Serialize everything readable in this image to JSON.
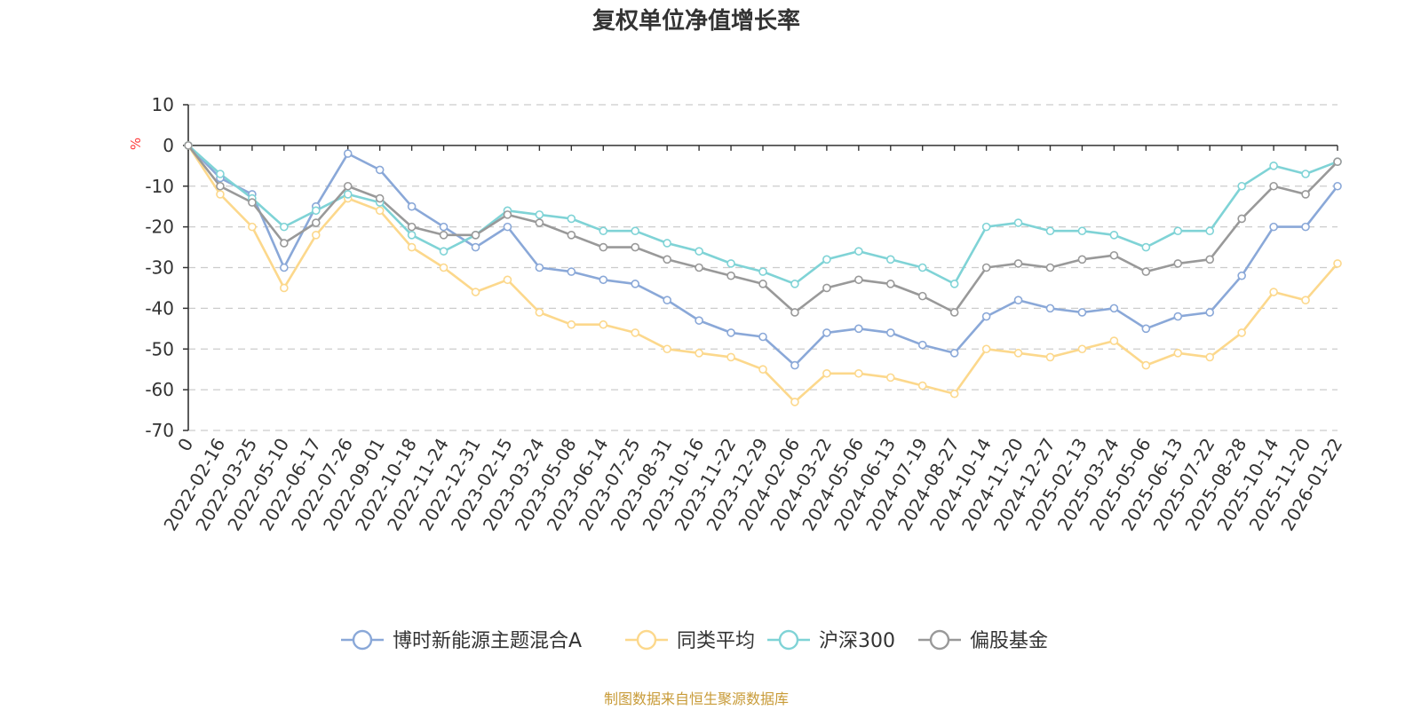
{
  "chart_data": {
    "type": "line",
    "title": "复权单位净值增长率",
    "ylabel": "%",
    "ylim": [
      -70,
      10
    ],
    "y_ticks": [
      10,
      0,
      -10,
      -20,
      -30,
      -40,
      -50,
      -60,
      -70
    ],
    "grid": true,
    "legend_position": "bottom",
    "x": [
      "0",
      "2022-02-16",
      "2022-03-25",
      "2022-05-10",
      "2022-06-17",
      "2022-07-26",
      "2022-09-01",
      "2022-10-18",
      "2022-11-24",
      "2022-12-31",
      "2023-02-15",
      "2023-03-24",
      "2023-05-08",
      "2023-06-14",
      "2023-07-25",
      "2023-08-31",
      "2023-10-16",
      "2023-11-22",
      "2023-12-29",
      "2024-02-06",
      "2024-03-22",
      "2024-05-06",
      "2024-06-13",
      "2024-07-19",
      "2024-08-27",
      "2024-10-14",
      "2024-11-20",
      "2024-12-27",
      "2025-02-13",
      "2025-03-24",
      "2025-05-06",
      "2025-06-13",
      "2025-07-22",
      "2025-08-28",
      "2025-10-14",
      "2025-11-20",
      "2026-01-22"
    ],
    "series": [
      {
        "name": "博时新能源主题混合A",
        "color": "#8aa8d8",
        "values": [
          0,
          -8,
          -12,
          -30,
          -15,
          -2,
          -6,
          -15,
          -20,
          -25,
          -20,
          -30,
          -31,
          -33,
          -34,
          -38,
          -43,
          -46,
          -47,
          -54,
          -46,
          -45,
          -46,
          -49,
          -51,
          -42,
          -38,
          -40,
          -41,
          -40,
          -45,
          -42,
          -41,
          -32,
          -20,
          -20,
          -10
        ]
      },
      {
        "name": "同类平均",
        "color": "#fcd88c",
        "values": [
          0,
          -12,
          -20,
          -35,
          -22,
          -13,
          -16,
          -25,
          -30,
          -36,
          -33,
          -41,
          -44,
          -44,
          -46,
          -50,
          -51,
          -52,
          -55,
          -63,
          -56,
          -56,
          -57,
          -59,
          -61,
          -50,
          -51,
          -52,
          -50,
          -48,
          -54,
          -51,
          -52,
          -46,
          -36,
          -38,
          -29
        ]
      },
      {
        "name": "沪深300",
        "color": "#7fd3d6",
        "values": [
          0,
          -7,
          -13,
          -20,
          -16,
          -12,
          -14,
          -22,
          -26,
          -22,
          -16,
          -17,
          -18,
          -21,
          -21,
          -24,
          -26,
          -29,
          -31,
          -34,
          -28,
          -26,
          -28,
          -30,
          -34,
          -20,
          -19,
          -21,
          -21,
          -22,
          -25,
          -21,
          -21,
          -10,
          -5,
          -7,
          -4
        ]
      },
      {
        "name": "偏股基金",
        "color": "#999999",
        "values": [
          0,
          -10,
          -14,
          -24,
          -19,
          -10,
          -13,
          -20,
          -22,
          -22,
          -17,
          -19,
          -22,
          -25,
          -25,
          -28,
          -30,
          -32,
          -34,
          -41,
          -35,
          -33,
          -34,
          -37,
          -41,
          -30,
          -29,
          -30,
          -28,
          -27,
          -31,
          -29,
          -28,
          -18,
          -10,
          -12,
          -4
        ]
      }
    ]
  },
  "legend": {
    "items": [
      "博时新能源主题混合A",
      "同类平均",
      "沪深300",
      "偏股基金"
    ]
  },
  "source": {
    "text": "制图数据来自恒生聚源数据库",
    "color": "#c89b38"
  },
  "colors": {
    "axis": "#333333",
    "grid": "#cccccc",
    "ylabel": "#ff3b3b"
  }
}
